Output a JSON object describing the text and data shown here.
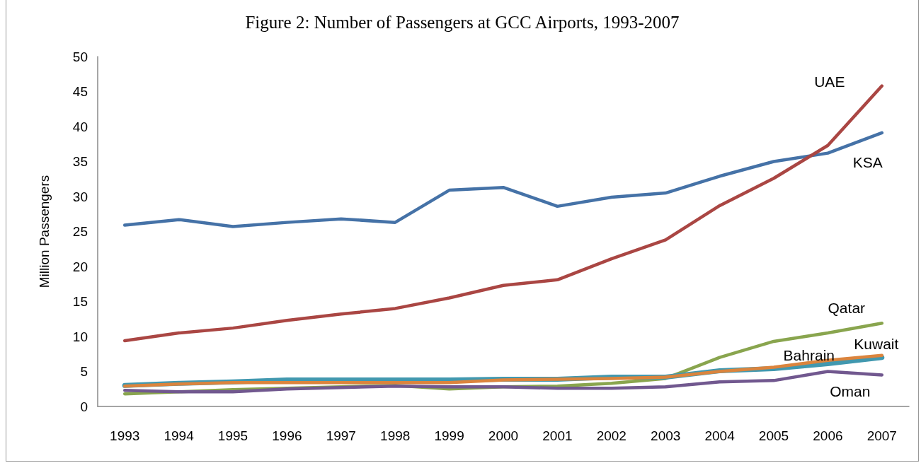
{
  "chart_data": {
    "type": "line",
    "title": "Figure 2: Number of Passengers at GCC Airports, 1993-2007",
    "ylabel": "Million Passengers",
    "categories": [
      "1993",
      "1994",
      "1995",
      "1996",
      "1997",
      "1998",
      "1999",
      "2000",
      "2001",
      "2002",
      "2003",
      "2004",
      "2005",
      "2006",
      "2007"
    ],
    "ylim": [
      0,
      50
    ],
    "yticks": [
      0,
      5,
      10,
      15,
      20,
      25,
      30,
      35,
      40,
      45,
      50
    ],
    "grid": false,
    "legend": false,
    "marker": "none",
    "line_style": "solid",
    "series": [
      {
        "name": "KSA",
        "color": "#4572a7",
        "values": [
          25.9,
          26.7,
          25.7,
          26.3,
          26.8,
          26.3,
          30.9,
          31.3,
          28.6,
          29.9,
          30.5,
          32.9,
          35.0,
          36.2,
          39.1
        ]
      },
      {
        "name": "UAE",
        "color": "#aa4643",
        "values": [
          9.4,
          10.5,
          11.2,
          12.3,
          13.2,
          14.0,
          15.5,
          17.3,
          18.1,
          21.1,
          23.8,
          28.7,
          32.6,
          37.3,
          45.8
        ]
      },
      {
        "name": "Qatar",
        "color": "#89a54e",
        "values": [
          1.8,
          2.1,
          2.4,
          2.6,
          2.8,
          3.0,
          2.5,
          2.8,
          2.9,
          3.3,
          4.0,
          7.0,
          9.3,
          10.5,
          11.9
        ]
      },
      {
        "name": "Oman",
        "color": "#71588f",
        "values": [
          2.3,
          2.1,
          2.1,
          2.5,
          2.7,
          2.9,
          2.8,
          2.8,
          2.6,
          2.6,
          2.8,
          3.5,
          3.7,
          5.0,
          4.5
        ]
      },
      {
        "name": "Bahrain",
        "color": "#4198af",
        "values": [
          3.0,
          3.3,
          3.5,
          3.8,
          3.8,
          3.8,
          3.8,
          3.9,
          3.9,
          4.2,
          4.2,
          5.1,
          5.4,
          6.1,
          7.0
        ]
      },
      {
        "name": "Kuwait",
        "color": "#db843d",
        "values": [
          2.9,
          3.2,
          3.4,
          3.4,
          3.4,
          3.4,
          3.4,
          3.8,
          3.9,
          4.0,
          4.2,
          5.0,
          5.6,
          6.6,
          7.3
        ]
      }
    ]
  }
}
